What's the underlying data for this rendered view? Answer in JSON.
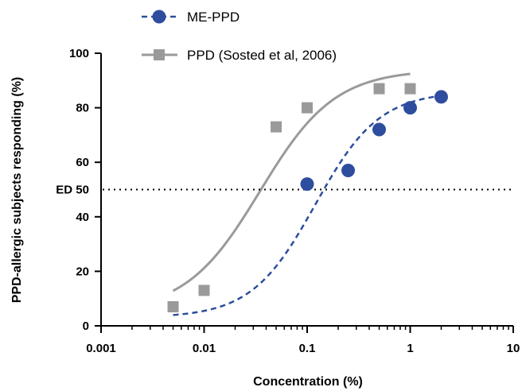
{
  "chart_data": {
    "type": "scatter",
    "xlabel": "Concentration  (%)",
    "ylabel": "PPD-allergic subjects responding (%)",
    "xscale": "log",
    "xlim": [
      0.001,
      10
    ],
    "ylim": [
      0,
      100
    ],
    "x_ticks": [
      0.001,
      0.01,
      0.1,
      1,
      10
    ],
    "x_tick_labels": [
      "0.001",
      "0.01",
      "0.1",
      "1",
      "10"
    ],
    "y_ticks": [
      0,
      20,
      40,
      60,
      80,
      100
    ],
    "y_tick_labels": [
      "0",
      "20",
      "40",
      "60",
      "80",
      "100"
    ],
    "legend_position": "top-left",
    "reference_line": {
      "y": 50,
      "label": "ED 50",
      "style": "dotted",
      "color": "#000000"
    },
    "series": [
      {
        "name": "ME-PPD",
        "marker": "circle",
        "line_style": "dashed",
        "color": "#2e4d9e",
        "points": [
          {
            "x": 0.1,
            "y": 52
          },
          {
            "x": 0.25,
            "y": 57
          },
          {
            "x": 0.5,
            "y": 72
          },
          {
            "x": 1,
            "y": 80
          },
          {
            "x": 2,
            "y": 84
          }
        ],
        "fit": {
          "bottom": 3,
          "top": 86,
          "ec50": 0.12,
          "hill": 1.4,
          "x_range": [
            0.005,
            2
          ]
        }
      },
      {
        "name": "PPD (Sosted et al, 2006)",
        "marker": "square",
        "line_style": "solid",
        "color": "#9a9a9a",
        "points": [
          {
            "x": 0.005,
            "y": 7
          },
          {
            "x": 0.01,
            "y": 13
          },
          {
            "x": 0.05,
            "y": 73
          },
          {
            "x": 0.1,
            "y": 80
          },
          {
            "x": 0.5,
            "y": 87
          },
          {
            "x": 1,
            "y": 87
          }
        ],
        "fit": {
          "bottom": 5,
          "top": 94,
          "ec50": 0.035,
          "hill": 1.2,
          "x_range": [
            0.005,
            1
          ]
        }
      }
    ]
  }
}
